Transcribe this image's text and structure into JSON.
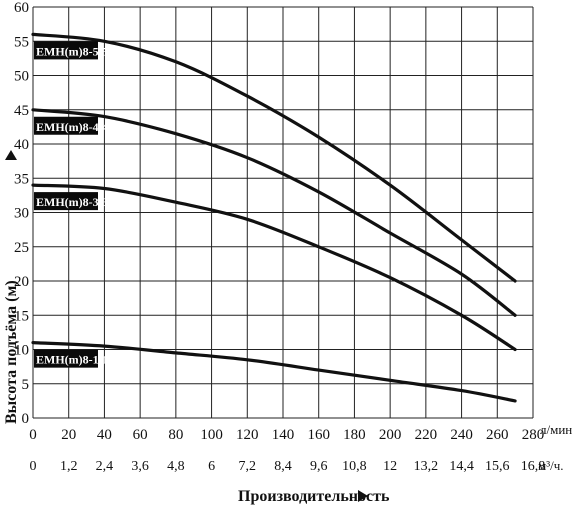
{
  "chart_data": {
    "type": "line",
    "xlabel": "Производительность",
    "ylabel": "Высота подъёма (м)",
    "x_unit": "л/мин.",
    "x2_unit": "м³/ч.",
    "xlim": [
      0,
      280
    ],
    "ylim": [
      0,
      60
    ],
    "x_ticks": [
      0,
      20,
      40,
      60,
      80,
      100,
      120,
      140,
      160,
      180,
      200,
      220,
      240,
      260,
      280
    ],
    "x2_ticks": [
      "0",
      "1,2",
      "2,4",
      "3,6",
      "4,8",
      "6",
      "7,2",
      "8,4",
      "9,6",
      "10,8",
      "12",
      "13,2",
      "14,4",
      "15,6",
      "16,8"
    ],
    "y_ticks": [
      0,
      5,
      10,
      15,
      20,
      25,
      30,
      35,
      40,
      45,
      50,
      55,
      60
    ],
    "grid": true,
    "series": [
      {
        "name": "EMH(m)8-5\\5",
        "x": [
          0,
          40,
          80,
          120,
          160,
          200,
          240,
          270
        ],
        "y": [
          56,
          55,
          52,
          47,
          41,
          34,
          26,
          20
        ]
      },
      {
        "name": "EMH(m)8-4\\4",
        "x": [
          0,
          40,
          80,
          120,
          160,
          200,
          240,
          270
        ],
        "y": [
          45,
          44,
          41.5,
          38,
          33,
          27,
          21,
          15
        ]
      },
      {
        "name": "EMH(m)8-3\\3",
        "x": [
          0,
          40,
          80,
          120,
          160,
          200,
          240,
          270
        ],
        "y": [
          34,
          33.5,
          31.5,
          29,
          25,
          20.5,
          15,
          10
        ]
      },
      {
        "name": "EMH(m)8-1\\1",
        "x": [
          0,
          40,
          80,
          120,
          160,
          200,
          240,
          270
        ],
        "y": [
          11,
          10.5,
          9.5,
          8.5,
          7,
          5.5,
          4,
          2.5
        ]
      }
    ]
  }
}
